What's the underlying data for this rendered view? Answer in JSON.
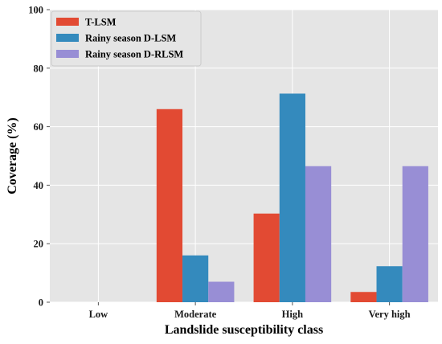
{
  "chart_data": {
    "type": "bar",
    "categories": [
      "Low",
      "Moderate",
      "High",
      "Very high"
    ],
    "series": [
      {
        "name": "T-LSM",
        "color": "#E24A33",
        "values": [
          0,
          66.0,
          30.3,
          3.5
        ]
      },
      {
        "name": "Rainy season D-LSM",
        "color": "#348ABD",
        "values": [
          0,
          16.0,
          71.3,
          12.3
        ]
      },
      {
        "name": "Rainy season D-RLSM",
        "color": "#988ED5",
        "values": [
          0,
          7.0,
          46.5,
          46.5
        ]
      }
    ],
    "xlabel": "Landslide susceptibility class",
    "ylabel": "Coverage (%)",
    "ylim": [
      0,
      100
    ],
    "yticks": [
      0,
      20,
      40,
      60,
      80,
      100
    ],
    "grid": true,
    "legend_position": "top-left",
    "background_color": "#E5E5E5",
    "grid_color": "#FFFFFF"
  }
}
